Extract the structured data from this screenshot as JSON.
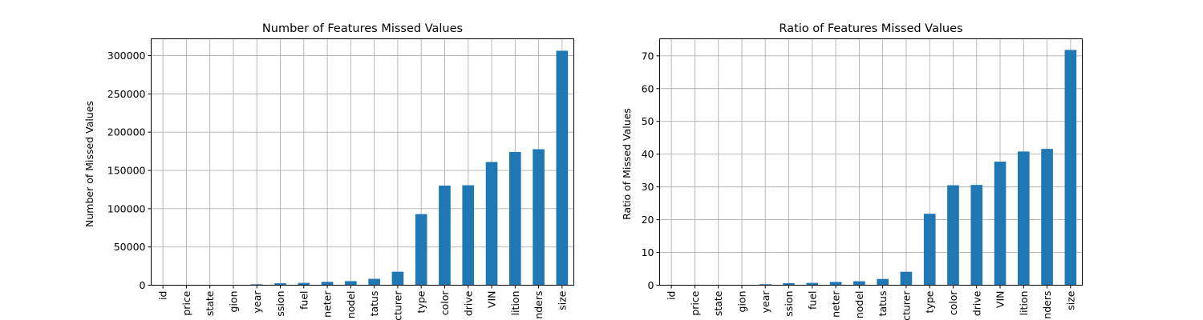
{
  "chart_data": [
    {
      "type": "bar",
      "title": "Number of Features Missed Values",
      "xlabel": "",
      "ylabel": "Number of Missed Values",
      "ylim": [
        0,
        322000
      ],
      "yticks": [
        0,
        50000,
        100000,
        150000,
        200000,
        250000,
        300000
      ],
      "grid": true,
      "categories": [
        "id",
        "price",
        "state",
        "region",
        "year",
        "transmission",
        "fuel",
        "odometer",
        "model",
        "title_status",
        "manufacturer",
        "type",
        "paint_color",
        "drive",
        "VIN",
        "condition",
        "cylinders",
        "size"
      ],
      "tick_labels_visible": [
        "id",
        "price",
        "state",
        "gion",
        "year",
        "ssion",
        "fuel",
        "neter",
        "nodel",
        "tatus",
        "cturer",
        "type",
        "color",
        "drive",
        "VIN",
        "lition",
        "nders",
        "size"
      ],
      "color": "#1f77b4",
      "values": [
        0,
        0,
        0,
        0,
        1200,
        2500,
        3000,
        4400,
        5300,
        8300,
        17600,
        92900,
        130200,
        130600,
        161000,
        174100,
        177700,
        306400
      ]
    },
    {
      "type": "bar",
      "title": "Ratio of Features Missed Values",
      "xlabel": "",
      "ylabel": "Ratio of Missed Values",
      "ylim": [
        0,
        75.2
      ],
      "yticks": [
        0,
        10,
        20,
        30,
        40,
        50,
        60,
        70
      ],
      "grid": true,
      "categories": [
        "id",
        "price",
        "state",
        "region",
        "year",
        "transmission",
        "fuel",
        "odometer",
        "model",
        "title_status",
        "manufacturer",
        "type",
        "paint_color",
        "drive",
        "VIN",
        "condition",
        "cylinders",
        "size"
      ],
      "tick_labels_visible": [
        "id",
        "price",
        "state",
        "gion",
        "year",
        "ssion",
        "fuel",
        "neter",
        "nodel",
        "tatus",
        "cturer",
        "type",
        "color",
        "drive",
        "VIN",
        "lition",
        "nders",
        "size"
      ],
      "color": "#1f77b4",
      "values": [
        0,
        0,
        0,
        0,
        0.3,
        0.6,
        0.7,
        1.0,
        1.2,
        1.9,
        4.1,
        21.8,
        30.5,
        30.6,
        37.7,
        40.8,
        41.6,
        71.8
      ]
    }
  ]
}
